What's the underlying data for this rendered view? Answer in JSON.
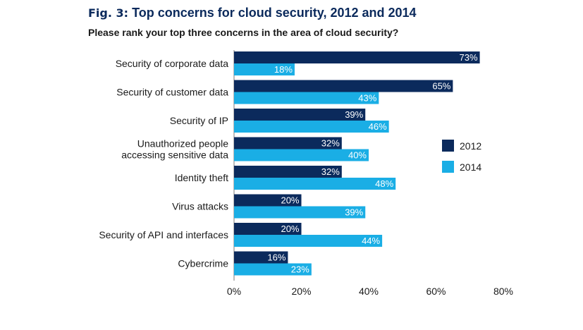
{
  "chart_data": {
    "type": "bar",
    "orientation": "horizontal",
    "fig_label": "Fig. 3:",
    "title": "Top concerns for cloud security, 2012 and 2014",
    "subtitle": "Please rank your top three concerns in the area of cloud security?",
    "categories": [
      [
        "Security of corporate data"
      ],
      [
        "Security of customer data"
      ],
      [
        "Security of IP"
      ],
      [
        "Unauthorized people",
        "accessing sensitive data"
      ],
      [
        "Identity theft"
      ],
      [
        "Virus attacks"
      ],
      [
        "Security of API and interfaces"
      ],
      [
        "Cybercrime"
      ]
    ],
    "series": [
      {
        "name": "2012",
        "color": "#0b2a5c",
        "values": [
          73,
          65,
          39,
          32,
          32,
          20,
          20,
          16
        ]
      },
      {
        "name": "2014",
        "color": "#1aaee5",
        "values": [
          18,
          43,
          46,
          40,
          48,
          39,
          44,
          23
        ]
      }
    ],
    "value_suffix": "%",
    "xlim": [
      0,
      80
    ],
    "xticks": [
      0,
      20,
      40,
      60,
      80
    ],
    "xtick_labels": [
      "0%",
      "20%",
      "40%",
      "60%",
      "80%"
    ],
    "legend_position": "right"
  }
}
